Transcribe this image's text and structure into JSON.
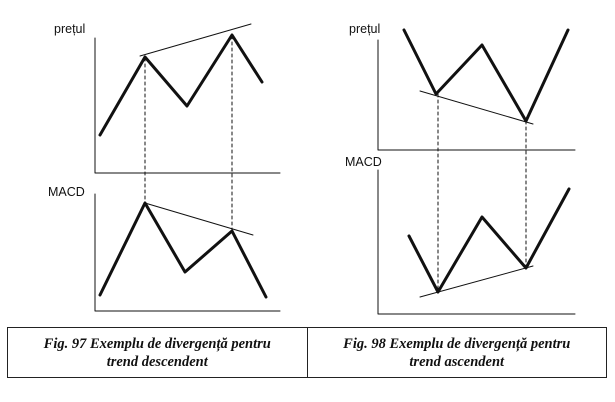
{
  "figures": [
    {
      "price_label": "prețul",
      "macd_label": "MACD",
      "caption_line1": "Fig. 97 Exemplu de divergență pentru",
      "caption_line2": "trend descendent"
    },
    {
      "price_label": "prețul",
      "macd_label": "MACD",
      "caption_line1": "Fig. 98 Exemplu de divergență pentru",
      "caption_line2": "trend ascendent"
    }
  ],
  "colors": {
    "ink": "#111111",
    "background": "#ffffff"
  }
}
